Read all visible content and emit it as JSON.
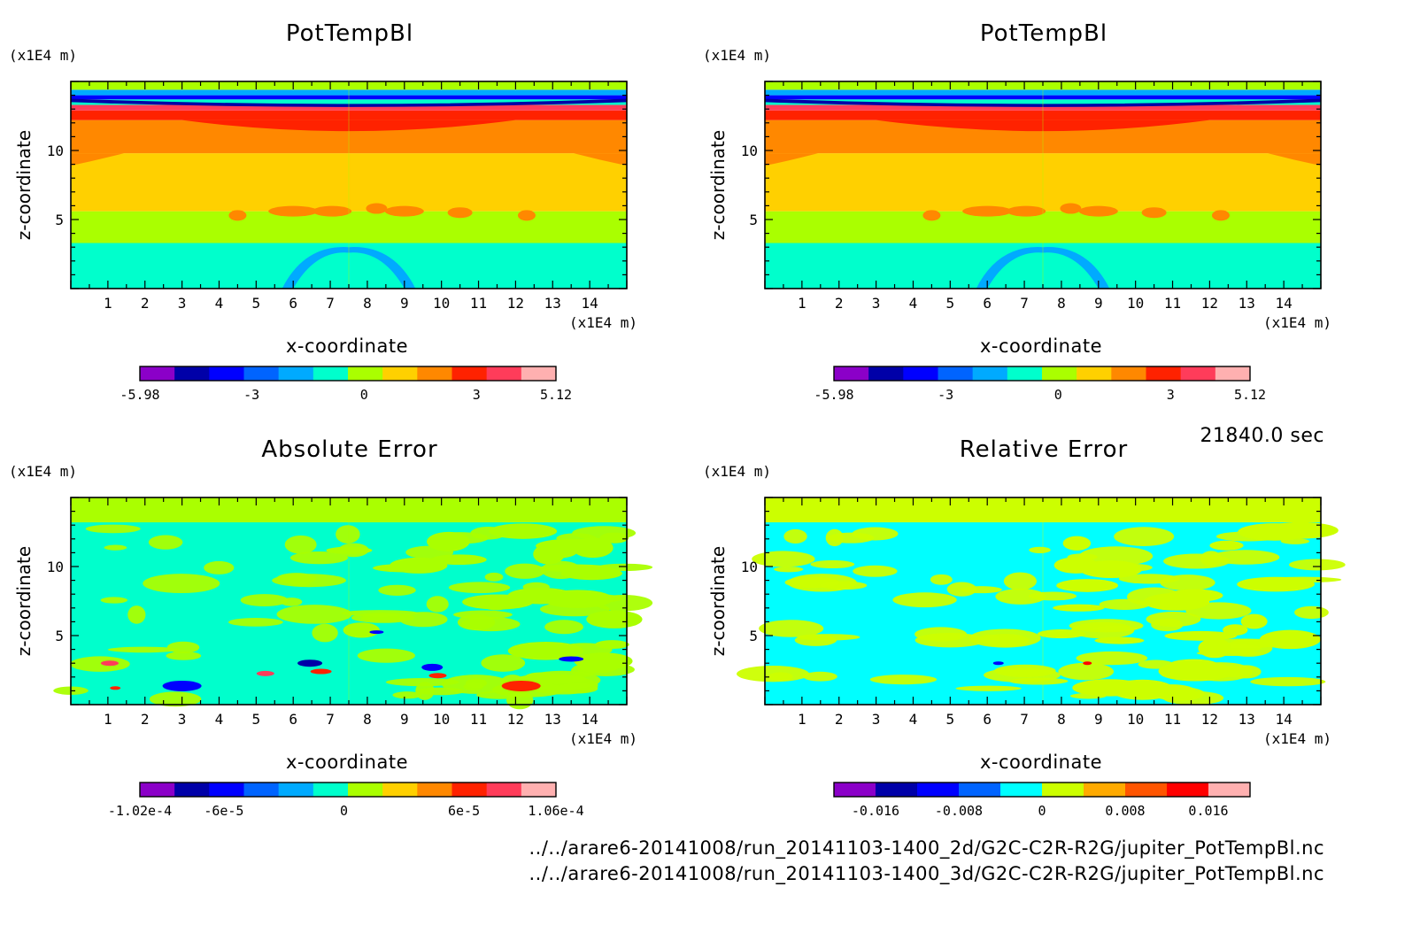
{
  "time_label": "21840.0 sec",
  "footer": {
    "file_2d": "../../arare6-20141008/run_20141103-1400_2d/G2C-C2R-R2G/jupiter_PotTempBl.nc",
    "file_3d": "../../arare6-20141008/run_20141103-1400_3d/G2C-C2R-R2G/jupiter_PotTempBl.nc"
  },
  "chart_data": [
    {
      "type": "heatmap",
      "title": "PotTempBl",
      "xlabel": "x-coordinate",
      "ylabel": "z-coordinate",
      "x_unit": "(x1E4 m)",
      "y_unit": "(x1E4 m)",
      "xlim": [
        0,
        15
      ],
      "ylim": [
        0,
        15
      ],
      "x_ticks": [
        "1",
        "2",
        "3",
        "4",
        "5",
        "6",
        "7",
        "8",
        "9",
        "10",
        "11",
        "12",
        "13",
        "14"
      ],
      "y_ticks": [
        "5",
        "10"
      ],
      "colorbar": {
        "min": -5.98,
        "max": 5.12,
        "labels": [
          "-5.98",
          "-3",
          "0",
          "3",
          "5.12"
        ],
        "colors": [
          "#8b00c8",
          "#0000a8",
          "#0000ff",
          "#0064ff",
          "#00aaff",
          "#00ffcc",
          "#aaff00",
          "#ffd000",
          "#ff8800",
          "#ff2200",
          "#ff3c5a",
          "#ffb0b0"
        ]
      }
    },
    {
      "type": "heatmap",
      "title": "PotTempBl",
      "xlabel": "x-coordinate",
      "ylabel": "z-coordinate",
      "x_unit": "(x1E4 m)",
      "y_unit": "(x1E4 m)",
      "xlim": [
        0,
        15
      ],
      "ylim": [
        0,
        15
      ],
      "x_ticks": [
        "1",
        "2",
        "3",
        "4",
        "5",
        "6",
        "7",
        "8",
        "9",
        "10",
        "11",
        "12",
        "13",
        "14"
      ],
      "y_ticks": [
        "5",
        "10"
      ],
      "colorbar": {
        "min": -5.98,
        "max": 5.12,
        "labels": [
          "-5.98",
          "-3",
          "0",
          "3",
          "5.12"
        ],
        "colors": [
          "#8b00c8",
          "#0000a8",
          "#0000ff",
          "#0064ff",
          "#00aaff",
          "#00ffcc",
          "#aaff00",
          "#ffd000",
          "#ff8800",
          "#ff2200",
          "#ff3c5a",
          "#ffb0b0"
        ]
      }
    },
    {
      "type": "heatmap",
      "title": "Absolute Error",
      "xlabel": "x-coordinate",
      "ylabel": "z-coordinate",
      "x_unit": "(x1E4 m)",
      "y_unit": "(x1E4 m)",
      "xlim": [
        0,
        15
      ],
      "ylim": [
        0,
        15
      ],
      "x_ticks": [
        "1",
        "2",
        "3",
        "4",
        "5",
        "6",
        "7",
        "8",
        "9",
        "10",
        "11",
        "12",
        "13",
        "14"
      ],
      "y_ticks": [
        "5",
        "10"
      ],
      "colorbar": {
        "min": -0.000102,
        "max": 0.000106,
        "labels": [
          "-1.02e-4",
          "-6e-5",
          "0",
          "6e-5",
          "1.06e-4"
        ],
        "colors": [
          "#8b00c8",
          "#0000a8",
          "#0000ff",
          "#0064ff",
          "#00aaff",
          "#00ffcc",
          "#aaff00",
          "#ffd000",
          "#ff8800",
          "#ff2200",
          "#ff3c5a",
          "#ffb0b0"
        ]
      }
    },
    {
      "type": "heatmap",
      "title": "Relative Error",
      "xlabel": "x-coordinate",
      "ylabel": "z-coordinate",
      "x_unit": "(x1E4 m)",
      "y_unit": "(x1E4 m)",
      "xlim": [
        0,
        15
      ],
      "ylim": [
        0,
        15
      ],
      "x_ticks": [
        "1",
        "2",
        "3",
        "4",
        "5",
        "6",
        "7",
        "8",
        "9",
        "10",
        "11",
        "12",
        "13",
        "14"
      ],
      "y_ticks": [
        "5",
        "10"
      ],
      "colorbar": {
        "min": -0.02,
        "max": 0.02,
        "labels": [
          "-0.016",
          "-0.008",
          "0",
          "0.008",
          "0.016"
        ],
        "colors": [
          "#8b00c8",
          "#0000a8",
          "#0000ff",
          "#0064ff",
          "#00ffff",
          "#ccff00",
          "#ffaa00",
          "#ff5500",
          "#ff0000",
          "#ffb0b0"
        ]
      }
    }
  ]
}
